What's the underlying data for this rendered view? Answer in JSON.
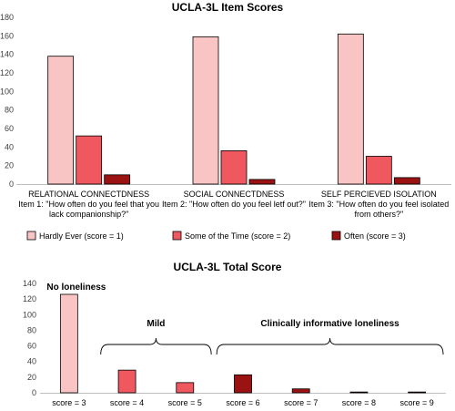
{
  "chart_data": [
    {
      "type": "bar",
      "title": "UCLA-3L  Item Scores",
      "ylim": [
        0,
        180
      ],
      "yticks": [
        0,
        20,
        40,
        60,
        80,
        100,
        120,
        140,
        160,
        180
      ],
      "grid": false,
      "legend_position": "bottom",
      "categories": [
        {
          "name": "RELATIONAL CONNECTDNESS",
          "desc": [
            "Item 1: \"How often do you feel that you",
            "lack companionship?\""
          ]
        },
        {
          "name": "SOCIAL CONNECTDNESS",
          "desc": [
            "Item 2: \"How often do you feel letf out?\""
          ]
        },
        {
          "name": "SELF PERCIEVED ISOLATION",
          "desc": [
            "Item 3: \"How often do you feel isolated",
            "from others?\""
          ]
        }
      ],
      "series": [
        {
          "name": "Hardly Ever (score = 1)",
          "color": "#f9c4c4",
          "values": [
            138,
            159,
            162
          ]
        },
        {
          "name": "Some of the Time (score = 2)",
          "color": "#f0585f",
          "values": [
            52,
            36,
            30
          ]
        },
        {
          "name": "Often (score = 3)",
          "color": "#9b1212",
          "values": [
            10,
            5,
            7
          ]
        }
      ]
    },
    {
      "type": "bar",
      "title": "UCLA-3L Total Score",
      "ylim": [
        0,
        140
      ],
      "yticks": [
        0,
        20,
        40,
        60,
        80,
        100,
        120,
        140
      ],
      "grid": false,
      "categories": [
        "score = 3",
        "score = 4",
        "score = 5",
        "score = 6",
        "score = 7",
        "score = 8",
        "score = 9"
      ],
      "values": [
        126,
        29,
        13,
        23,
        5,
        1,
        1
      ],
      "colors": [
        "#f9c4c4",
        "#f0585f",
        "#f0585f",
        "#9b1212",
        "#9b1212",
        "#9b1212",
        "#9b1212"
      ],
      "annotations": [
        {
          "text": "No loneliness",
          "from": 0,
          "to": 0,
          "bracket": false
        },
        {
          "text": "Mild",
          "from": 1,
          "to": 2,
          "bracket": true
        },
        {
          "text": "Clinically informative loneliness",
          "from": 3,
          "to": 6,
          "bracket": true
        }
      ]
    }
  ]
}
